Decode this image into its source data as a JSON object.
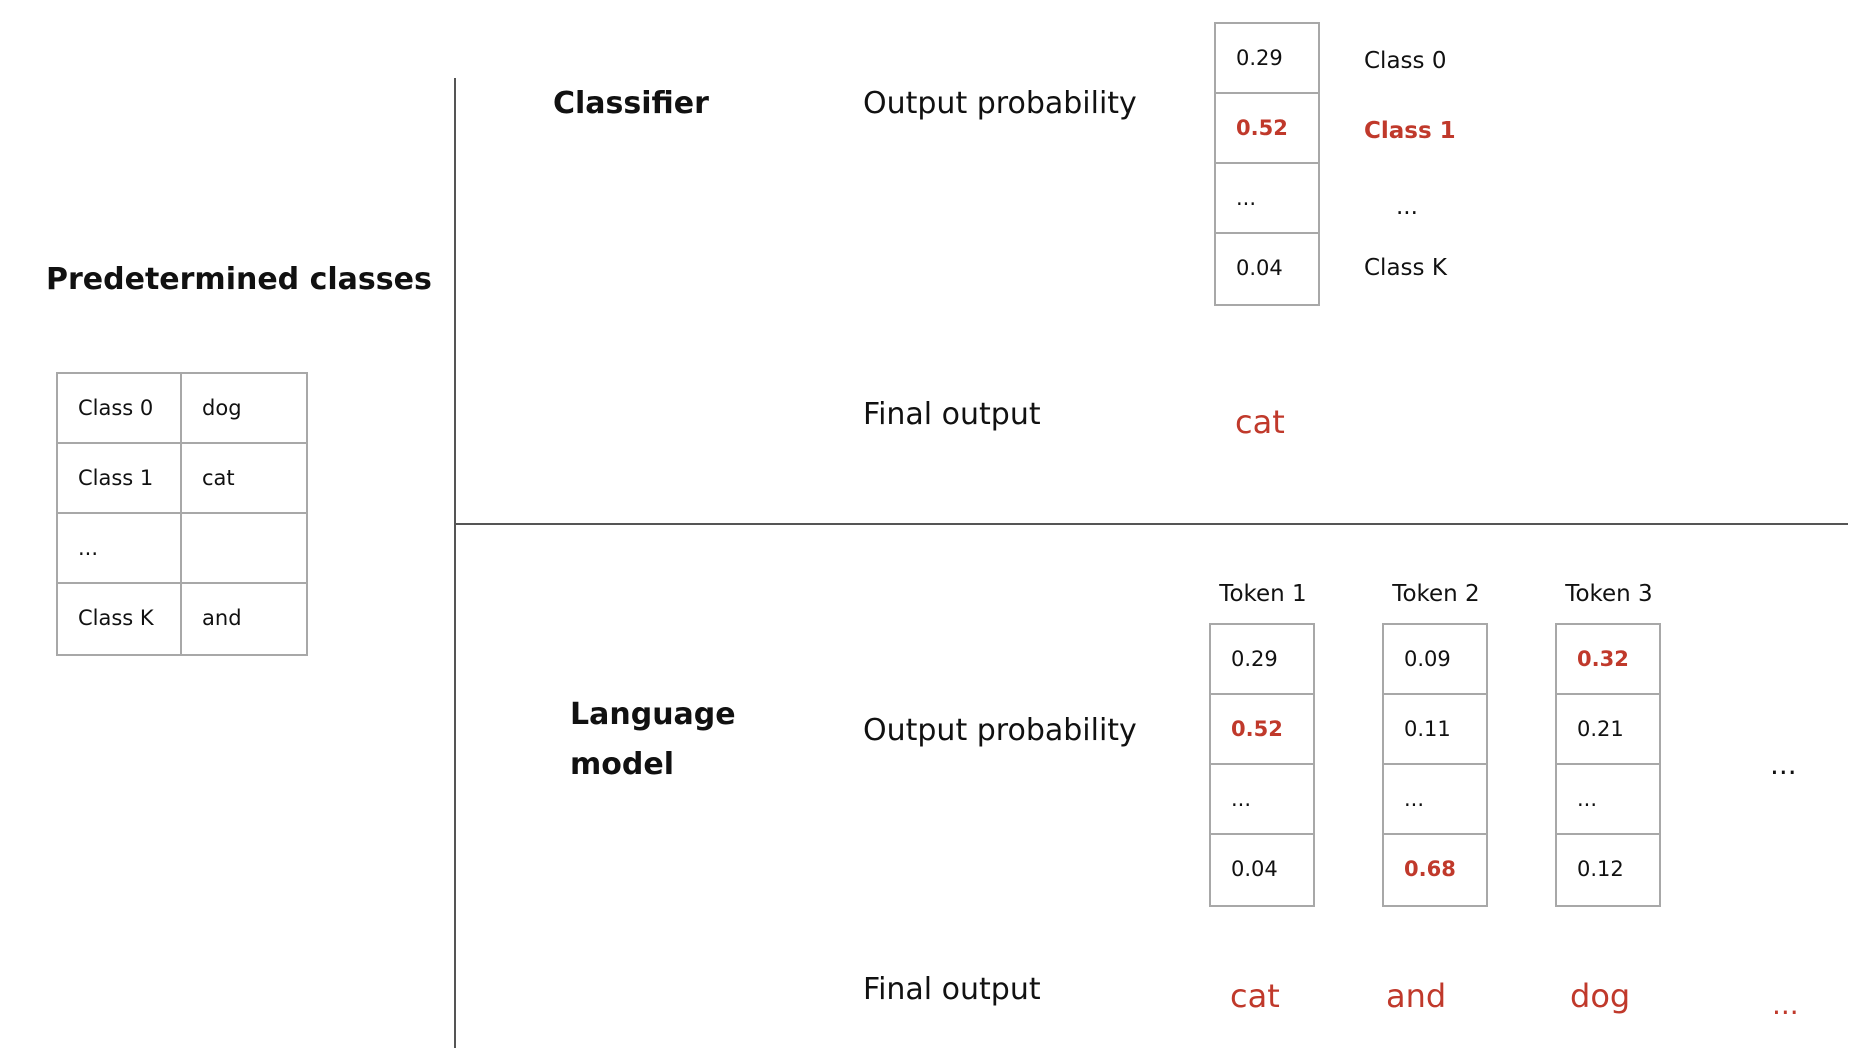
{
  "left_panel": {
    "title": "Predetermined classes",
    "table": [
      [
        "Class 0",
        "dog"
      ],
      [
        "Class 1",
        "cat"
      ],
      [
        "...",
        ""
      ],
      [
        "Class K",
        "and"
      ]
    ]
  },
  "classifier": {
    "title": "Classifier",
    "probability_label": "Output probability",
    "probabilities": [
      "0.29",
      "0.52",
      "...",
      "0.04"
    ],
    "class_labels": [
      "Class 0",
      "Class 1",
      "...",
      "Class K"
    ],
    "highlight_index": 1,
    "final_output_label": "Final output",
    "final_output": "cat"
  },
  "language_model": {
    "title": "Language model",
    "probability_label": "Output probability",
    "tokens": [
      {
        "header": "Token 1",
        "probabilities": [
          "0.29",
          "0.52",
          "...",
          "0.04"
        ],
        "highlight_index": 1,
        "output": "cat"
      },
      {
        "header": "Token 2",
        "probabilities": [
          "0.09",
          "0.11",
          "...",
          "0.68"
        ],
        "highlight_index": 3,
        "output": "and"
      },
      {
        "header": "Token 3",
        "probabilities": [
          "0.32",
          "0.21",
          "...",
          "0.12"
        ],
        "highlight_index": 0,
        "output": "dog"
      }
    ],
    "continuation": "...",
    "final_output_label": "Final output",
    "final_output_continuation": "..."
  },
  "colors": {
    "highlight": "#c0392b",
    "cell_border": "#a8a8a8",
    "divider": "#555555"
  }
}
